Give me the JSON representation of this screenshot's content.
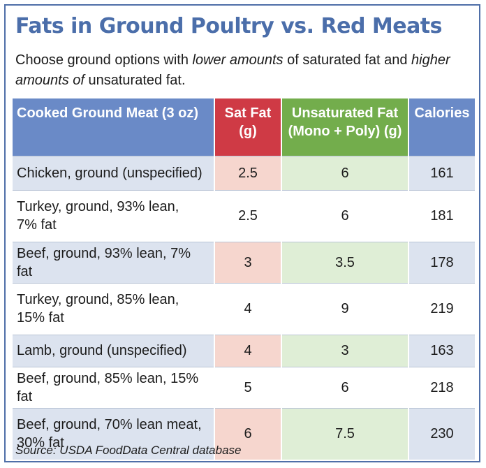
{
  "title": "Fats in Ground Poultry vs. Red Meats",
  "subtitle": {
    "part1": "Choose ground options with ",
    "part2": "lower amounts",
    "part3": " of saturated fat and ",
    "part4": "higher amounts of",
    "part5": " unsaturated fat."
  },
  "table": {
    "headers": {
      "name": "Cooked Ground Meat (3 oz)",
      "sat_line1": "Sat Fat",
      "sat_line2": "(g)",
      "unsat_line1": "Unsaturated Fat",
      "unsat_line2": "(Mono + Poly) (g)",
      "calories": "Calories"
    },
    "rows": [
      {
        "name_line1": "Chicken, ground (unspecified)",
        "name_line2": "",
        "sat": "2.5",
        "unsat": "6",
        "calories": "161"
      },
      {
        "name_line1": "Turkey, ground, 93% lean,",
        "name_line2": "7% fat",
        "sat": "2.5",
        "unsat": "6",
        "calories": "181"
      },
      {
        "name_line1": "Beef, ground, 93% lean, 7% fat",
        "name_line2": "",
        "sat": "3",
        "unsat": "3.5",
        "calories": "178"
      },
      {
        "name_line1": "Turkey, ground, 85% lean,",
        "name_line2": "15% fat",
        "sat": "4",
        "unsat": "9",
        "calories": "219"
      },
      {
        "name_line1": "Lamb, ground (unspecified)",
        "name_line2": "",
        "sat": "4",
        "unsat": "3",
        "calories": "163"
      },
      {
        "name_line1": "Beef, ground, 85% lean, 15% fat",
        "name_line2": "",
        "sat": "5",
        "unsat": "6",
        "calories": "218"
      },
      {
        "name_line1": "Beef, ground, 70% lean meat,",
        "name_line2": "30% fat",
        "sat": "6",
        "unsat": "7.5",
        "calories": "230"
      }
    ]
  },
  "source": "Source: USDA FoodData Central database",
  "colors": {
    "title_blue": "#4b6eaa",
    "header_blue": "#6a8ac7",
    "header_red": "#cf3a45",
    "header_green": "#73ad4c",
    "row_blue": "#dce3ef",
    "row_pink": "#f6d6ce",
    "row_green": "#dfeed6"
  }
}
